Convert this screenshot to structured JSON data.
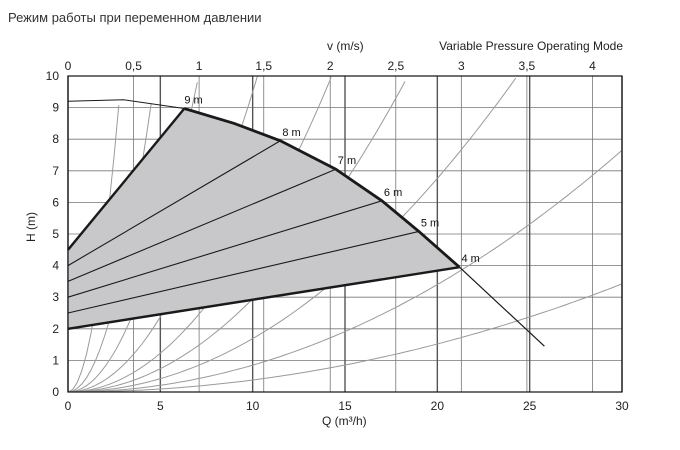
{
  "chart_data": {
    "type": "line",
    "title": "Режим работы при переменном давлении",
    "subtitle": "Variable Pressure Operating Mode",
    "xlabel": "Q (m³/h)",
    "ylabel": "H (m)",
    "x2label": "v (m/s)",
    "xlim": [
      0,
      30
    ],
    "ylim": [
      0,
      10
    ],
    "x_ticks": [
      0,
      5,
      10,
      15,
      20,
      25,
      30
    ],
    "y_ticks": [
      0,
      1,
      2,
      3,
      4,
      5,
      6,
      7,
      8,
      9,
      10
    ],
    "v_ticks": [
      "0",
      "0,5",
      "1",
      "1,5",
      "2",
      "2,5",
      "3",
      "3,5",
      "4"
    ],
    "v_tick_q": [
      0,
      3.55,
      7.1,
      10.6,
      14.2,
      17.75,
      21.3,
      24.85,
      28.4
    ],
    "grid": true,
    "max_curve": {
      "x": [
        0,
        3,
        6.3,
        9,
        11.5,
        14.5,
        17,
        19,
        21.2,
        25.8
      ],
      "y": [
        9.2,
        9.25,
        8.97,
        8.5,
        7.95,
        7.05,
        6.05,
        5.08,
        3.95,
        1.45
      ]
    },
    "upper_control_line": {
      "x": [
        0,
        6.3
      ],
      "y": [
        4.5,
        8.97
      ]
    },
    "lower_control_line": {
      "x": [
        0,
        21.2
      ],
      "y": [
        2.0,
        3.95
      ]
    },
    "speed_lines": [
      {
        "label": "9 m",
        "x": [
          0,
          6.3
        ],
        "y": [
          4.5,
          8.97
        ]
      },
      {
        "label": "8 m",
        "x": [
          0,
          11.5
        ],
        "y": [
          4.0,
          7.95
        ]
      },
      {
        "label": "7 m",
        "x": [
          0,
          14.5
        ],
        "y": [
          3.5,
          7.05
        ]
      },
      {
        "label": "6 m",
        "x": [
          0,
          17.0
        ],
        "y": [
          3.0,
          6.05
        ]
      },
      {
        "label": "5 m",
        "x": [
          0,
          19.0
        ],
        "y": [
          2.5,
          5.08
        ]
      },
      {
        "label": "4 m",
        "x": [
          0,
          21.2
        ],
        "y": [
          2.0,
          3.95
        ]
      }
    ],
    "system_curve_coeffs": [
      1.2,
      0.45,
      0.2,
      0.095,
      0.049,
      0.0295,
      0.0169,
      0.0085,
      0.0038
    ],
    "colors": {
      "area_fill": "#c8c8ca",
      "line": "#1a1a1a",
      "grid": "#777777",
      "system_curve": "#9a9a9a"
    }
  }
}
